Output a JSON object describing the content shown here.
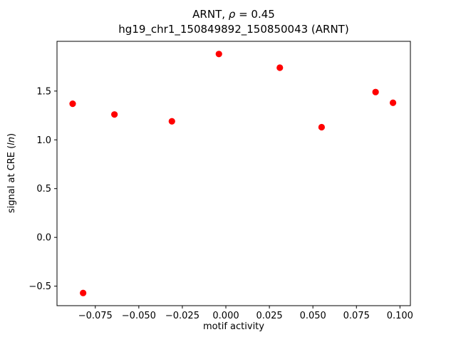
{
  "figure": {
    "background": "#ffffff"
  },
  "chart_data": {
    "type": "scatter",
    "title_parts": {
      "prefix": "ARNT, ",
      "rho": "ρ",
      "suffix": " = 0.45"
    },
    "subtitle": "hg19_chr1_150849892_150850043 (ARNT)",
    "xlabel": "motif activity",
    "ylabel_parts": {
      "prefix": "signal at CRE (",
      "italic": "ln",
      "suffix": ")"
    },
    "marker_color": "#ff0000",
    "axis_color": "#000000",
    "xlim": [
      -0.097,
      0.106
    ],
    "ylim": [
      -0.7,
      2.01
    ],
    "grid": false,
    "legend": "none",
    "xticks": {
      "values": [
        -0.075,
        -0.05,
        -0.025,
        0.0,
        0.025,
        0.05,
        0.075,
        0.1
      ],
      "labels": [
        "−0.075",
        "−0.050",
        "−0.025",
        "0.000",
        "0.025",
        "0.050",
        "0.075",
        "0.100"
      ]
    },
    "yticks": {
      "values": [
        -0.5,
        0.0,
        0.5,
        1.0,
        1.5
      ],
      "labels": [
        "−0.5",
        "0.0",
        "0.5",
        "1.0",
        "1.5"
      ]
    },
    "points": [
      {
        "x": -0.088,
        "y": 1.37
      },
      {
        "x": -0.082,
        "y": -0.57
      },
      {
        "x": -0.064,
        "y": 1.26
      },
      {
        "x": -0.031,
        "y": 1.19
      },
      {
        "x": -0.004,
        "y": 1.88
      },
      {
        "x": 0.031,
        "y": 1.74
      },
      {
        "x": 0.055,
        "y": 1.13
      },
      {
        "x": 0.086,
        "y": 1.49
      },
      {
        "x": 0.096,
        "y": 1.38
      }
    ]
  }
}
